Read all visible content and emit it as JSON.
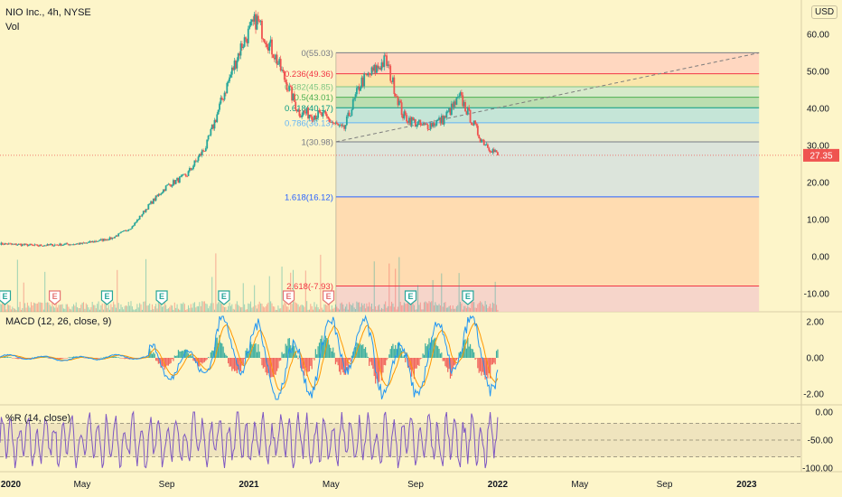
{
  "header": {
    "symbol_title": "NIO Inc., 4h, NYSE",
    "volume_label": "Vol",
    "currency_label": "USD"
  },
  "colors": {
    "background": "#fdf5c9",
    "up": "#26a69a",
    "down": "#ef5350",
    "macd_line": "#2196f3",
    "signal_line": "#ff9800",
    "williams_line": "#7e57c2",
    "current_price_tag": "#ef5350"
  },
  "main_axis": {
    "tick_labels": [
      "60.00",
      "50.00",
      "40.00",
      "30.00",
      "20.00",
      "10.00",
      "0.00",
      "-10.00"
    ],
    "tick_values": [
      60,
      50,
      40,
      30,
      20,
      10,
      0,
      -10
    ],
    "current_price_label": "27.35",
    "current_price": 27.35
  },
  "time_axis": {
    "labels": [
      "2020",
      "May",
      "Sep",
      "2021",
      "May",
      "Sep",
      "2022",
      "May",
      "Sep",
      "2023"
    ]
  },
  "fib": {
    "levels": [
      {
        "label": "0(55.03)",
        "ratio": 0,
        "price": 55.03,
        "color": "#787b86"
      },
      {
        "label": "0.236(49.36)",
        "ratio": 0.236,
        "price": 49.36,
        "color": "#f23645"
      },
      {
        "label": "0.382(45.85)",
        "ratio": 0.382,
        "price": 45.85,
        "color": "#81c784"
      },
      {
        "label": "0.5(43.01)",
        "ratio": 0.5,
        "price": 43.01,
        "color": "#4caf50"
      },
      {
        "label": "0.618(40.17)",
        "ratio": 0.618,
        "price": 40.17,
        "color": "#089981"
      },
      {
        "label": "0.786(36.13)",
        "ratio": 0.786,
        "price": 36.13,
        "color": "#64b5f6"
      },
      {
        "label": "1(30.98)",
        "ratio": 1,
        "price": 30.98,
        "color": "#787b86"
      },
      {
        "label": "1.618(16.12)",
        "ratio": 1.618,
        "price": 16.12,
        "color": "#2962ff"
      },
      {
        "label": "2.618(-7.93)",
        "ratio": 2.618,
        "price": -7.93,
        "color": "#f23645"
      }
    ]
  },
  "macd": {
    "label": "MACD (12, 26, close, 9)",
    "tick_labels": [
      "2.00",
      "0.00",
      "-2.00"
    ],
    "tick_values": [
      2,
      0,
      -2
    ]
  },
  "williams": {
    "label": "%R (14, close)",
    "tick_labels": [
      "0.00",
      "-50.00",
      "-100.00"
    ],
    "tick_values": [
      0,
      -50,
      -100
    ],
    "bands": [
      -20,
      -50,
      -80
    ]
  },
  "earnings": {
    "markers": [
      "E",
      "E",
      "E",
      "E",
      "E",
      "E",
      "E",
      "E",
      "E"
    ],
    "kinds": [
      "earn",
      "div",
      "earn",
      "earn",
      "earn",
      "div",
      "div",
      "earn",
      "earn"
    ],
    "dates": [
      2020.02,
      2020.22,
      2020.43,
      2020.65,
      2020.9,
      2021.16,
      2021.32,
      2021.65,
      2021.88
    ]
  },
  "chart_data": {
    "type": "line",
    "title": "NIO Inc., 4h, NYSE",
    "y_unit": "USD",
    "ylim": [
      -12,
      66
    ],
    "x": [
      "2020-01",
      "2020-03",
      "2020-05",
      "2020-06",
      "2020-07",
      "2020-08",
      "2020-09",
      "2020-10",
      "2020-11",
      "2020-12",
      "2021-01",
      "2021-01",
      "2021-02",
      "2021-03",
      "2021-04",
      "2021-05",
      "2021-06",
      "2021-07",
      "2021-08",
      "2021-09",
      "2021-10",
      "2021-11",
      "2021-12",
      "2022-01"
    ],
    "t": [
      2020.0,
      2020.15,
      2020.33,
      2020.45,
      2020.53,
      2020.6,
      2020.67,
      2020.75,
      2020.83,
      2020.9,
      2020.97,
      2021.03,
      2021.1,
      2021.2,
      2021.3,
      2021.38,
      2021.45,
      2021.55,
      2021.62,
      2021.7,
      2021.78,
      2021.85,
      2021.93,
      2022.0
    ],
    "close": [
      3.5,
      3.0,
      3.5,
      5.0,
      8.0,
      14.0,
      19.0,
      22.0,
      30.0,
      44.0,
      57.0,
      64.0,
      55.0,
      39.0,
      38.0,
      34.0,
      47.0,
      53.0,
      38.0,
      35.0,
      37.0,
      43.0,
      32.0,
      27.35
    ],
    "fib_retracement": {
      "start": 55.03,
      "end": 30.98
    },
    "trend_line": {
      "start": [
        2021.35,
        31.0
      ],
      "end": [
        2023.05,
        55.0
      ]
    }
  }
}
